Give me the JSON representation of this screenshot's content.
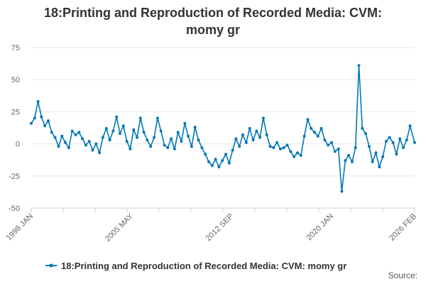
{
  "title_line1": "18:Printing and Reproduction of Recorded Media: CVM:",
  "title_line2": "momy gr",
  "source_label": "Source:",
  "colors": {
    "series": "#0077b6",
    "grid": "#e6e6e6",
    "text": "#666666"
  },
  "chart_data": {
    "type": "line",
    "title": "18:Printing and Reproduction of Recorded Media: CVM: momy gr",
    "xlabel": "",
    "ylabel": "",
    "x_range": [
      "1998 JAN",
      "2026 FEB"
    ],
    "x_tick_labels": [
      "1998 JAN",
      "2005 MAY",
      "2012 SEP",
      "2020 JAN",
      "2026 FEB"
    ],
    "ylim": [
      -50,
      75
    ],
    "y_ticks": [
      -50,
      -25,
      0,
      25,
      50,
      75
    ],
    "grid": true,
    "legend_position": "bottom",
    "series": [
      {
        "name": "18:Printing and Reproduction of Recorded Media: CVM: momy gr",
        "points": [
          [
            "1998 JAN",
            16
          ],
          [
            "1998 APR",
            20
          ],
          [
            "1998 JUL",
            33
          ],
          [
            "1998 OCT",
            21
          ],
          [
            "1999 JAN",
            14
          ],
          [
            "1999 APR",
            18
          ],
          [
            "1999 JUL",
            9
          ],
          [
            "1999 OCT",
            5
          ],
          [
            "2000 JAN",
            -2
          ],
          [
            "2000 APR",
            6
          ],
          [
            "2000 JUL",
            1
          ],
          [
            "2000 OCT",
            -3
          ],
          [
            "2001 JAN",
            10
          ],
          [
            "2001 APR",
            7
          ],
          [
            "2001 JUL",
            9
          ],
          [
            "2001 OCT",
            4
          ],
          [
            "2002 JAN",
            -1
          ],
          [
            "2002 APR",
            2
          ],
          [
            "2002 JUL",
            -5
          ],
          [
            "2002 OCT",
            0
          ],
          [
            "2003 JAN",
            -7
          ],
          [
            "2003 APR",
            5
          ],
          [
            "2003 JUL",
            12
          ],
          [
            "2003 OCT",
            3
          ],
          [
            "2004 JAN",
            10
          ],
          [
            "2004 APR",
            21
          ],
          [
            "2004 JUL",
            8
          ],
          [
            "2004 OCT",
            14
          ],
          [
            "2005 JAN",
            2
          ],
          [
            "2005 APR",
            -4
          ],
          [
            "2005 JUL",
            11
          ],
          [
            "2005 OCT",
            5
          ],
          [
            "2006 JAN",
            20
          ],
          [
            "2006 APR",
            9
          ],
          [
            "2006 JUL",
            3
          ],
          [
            "2006 OCT",
            -2
          ],
          [
            "2007 JAN",
            5
          ],
          [
            "2007 APR",
            20
          ],
          [
            "2007 JUL",
            10
          ],
          [
            "2007 OCT",
            -1
          ],
          [
            "2008 JAN",
            -3
          ],
          [
            "2008 APR",
            4
          ],
          [
            "2008 JUL",
            -4
          ],
          [
            "2008 OCT",
            9
          ],
          [
            "2009 JAN",
            2
          ],
          [
            "2009 APR",
            16
          ],
          [
            "2009 JUL",
            6
          ],
          [
            "2009 OCT",
            -2
          ],
          [
            "2010 JAN",
            13
          ],
          [
            "2010 APR",
            3
          ],
          [
            "2010 JUL",
            -3
          ],
          [
            "2010 OCT",
            -8
          ],
          [
            "2011 JAN",
            -14
          ],
          [
            "2011 APR",
            -17
          ],
          [
            "2011 JUL",
            -12
          ],
          [
            "2011 OCT",
            -18
          ],
          [
            "2012 JAN",
            -13
          ],
          [
            "2012 APR",
            -8
          ],
          [
            "2012 JUL",
            -15
          ],
          [
            "2012 OCT",
            -5
          ],
          [
            "2013 JAN",
            4
          ],
          [
            "2013 APR",
            -2
          ],
          [
            "2013 JUL",
            7
          ],
          [
            "2013 OCT",
            1
          ],
          [
            "2014 JAN",
            12
          ],
          [
            "2014 APR",
            3
          ],
          [
            "2014 JUL",
            10
          ],
          [
            "2014 OCT",
            5
          ],
          [
            "2015 JAN",
            20
          ],
          [
            "2015 APR",
            7
          ],
          [
            "2015 JUL",
            -2
          ],
          [
            "2015 OCT",
            -3
          ],
          [
            "2016 JAN",
            1
          ],
          [
            "2016 APR",
            -4
          ],
          [
            "2016 JUL",
            -3
          ],
          [
            "2016 OCT",
            -1
          ],
          [
            "2017 JAN",
            -6
          ],
          [
            "2017 APR",
            -10
          ],
          [
            "2017 JUL",
            -7
          ],
          [
            "2017 OCT",
            -9
          ],
          [
            "2018 JAN",
            6
          ],
          [
            "2018 APR",
            19
          ],
          [
            "2018 JUL",
            12
          ],
          [
            "2018 OCT",
            9
          ],
          [
            "2019 JAN",
            6
          ],
          [
            "2019 APR",
            12
          ],
          [
            "2019 JUL",
            3
          ],
          [
            "2019 OCT",
            -1
          ],
          [
            "2020 JAN",
            1
          ],
          [
            "2020 APR",
            -6
          ],
          [
            "2020 JUL",
            -4
          ],
          [
            "2020 OCT",
            -37
          ],
          [
            "2021 JAN",
            -13
          ],
          [
            "2021 APR",
            -9
          ],
          [
            "2021 JUL",
            -14
          ],
          [
            "2021 OCT",
            -3
          ],
          [
            "2022 JAN",
            61
          ],
          [
            "2022 APR",
            12
          ],
          [
            "2022 JUL",
            8
          ],
          [
            "2022 OCT",
            -2
          ],
          [
            "2023 JAN",
            -14
          ],
          [
            "2023 APR",
            -7
          ],
          [
            "2023 JUL",
            -18
          ],
          [
            "2023 OCT",
            -10
          ],
          [
            "2024 JAN",
            2
          ],
          [
            "2024 APR",
            5
          ],
          [
            "2024 JUL",
            1
          ],
          [
            "2024 OCT",
            -8
          ],
          [
            "2025 JAN",
            4
          ],
          [
            "2025 APR",
            -3
          ],
          [
            "2025 JUL",
            3
          ],
          [
            "2025 OCT",
            14
          ],
          [
            "2026 FEB",
            1
          ]
        ]
      }
    ]
  }
}
